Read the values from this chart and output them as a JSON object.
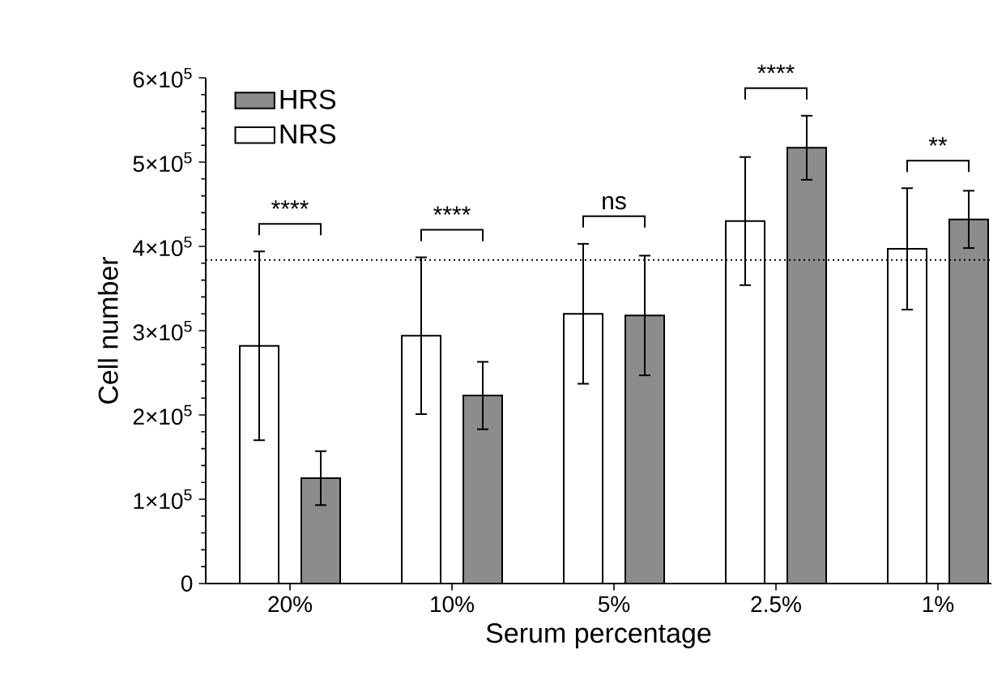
{
  "chart_data": {
    "type": "bar",
    "xlabel": "Serum percentage",
    "ylabel": "Cell number",
    "categories": [
      "20%",
      "10%",
      "5%",
      "2.5%",
      "1%"
    ],
    "series": [
      {
        "name": "NRS",
        "color": "#ffffff",
        "values": [
          282000,
          294000,
          320000,
          430000,
          397000
        ],
        "errors": [
          112000,
          93000,
          83000,
          76000,
          72000
        ]
      },
      {
        "name": "HRS",
        "color": "#8c8c8c",
        "values": [
          125000,
          223000,
          318000,
          517000,
          432000
        ],
        "errors": [
          32000,
          40000,
          71000,
          38000,
          34000
        ]
      }
    ],
    "ylim": [
      0,
      600000
    ],
    "yticks": [
      0,
      {
        "value": 100000,
        "label": "1×10$^{5}$"
      },
      {
        "value": 200000,
        "label": "2×10$^{5}$"
      },
      {
        "value": 300000,
        "label": "3×10$^{5}$"
      },
      {
        "value": 400000,
        "label": "4×10$^{5}$"
      },
      {
        "value": 500000,
        "label": "5×10$^{5}$"
      },
      {
        "value": 600000,
        "label": "6×10$^{5}$"
      }
    ],
    "ref_lines": [
      {
        "axis": "y",
        "value": 384000,
        "line_style": "dotted"
      }
    ],
    "annotations": [
      "****",
      "****",
      "ns",
      "****",
      "**"
    ],
    "legend": "top left",
    "grid": false
  }
}
